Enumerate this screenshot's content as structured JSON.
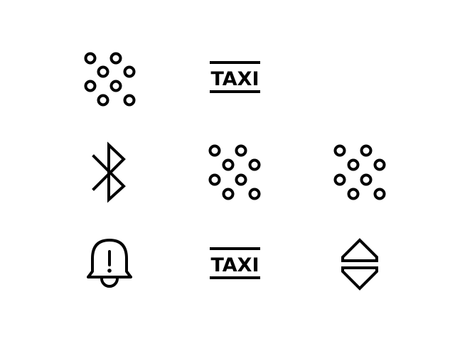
{
  "background_color": "#ffffff",
  "icon_color": "#000000",
  "icons": [
    {
      "row": 1,
      "col": 1,
      "icon": "pattern-dots-icon"
    },
    {
      "row": 1,
      "col": 2,
      "icon": "taxi-icon",
      "label": "TAXI"
    },
    {
      "row": 2,
      "col": 1,
      "icon": "bluetooth-icon"
    },
    {
      "row": 2,
      "col": 2,
      "icon": "pattern-dots-icon"
    },
    {
      "row": 2,
      "col": 3,
      "icon": "pattern-dots-icon"
    },
    {
      "row": 3,
      "col": 1,
      "icon": "bell-alert-icon"
    },
    {
      "row": 3,
      "col": 2,
      "icon": "taxi-icon",
      "label": "TAXI"
    },
    {
      "row": 3,
      "col": 3,
      "icon": "up-down-triangles-icon"
    }
  ]
}
